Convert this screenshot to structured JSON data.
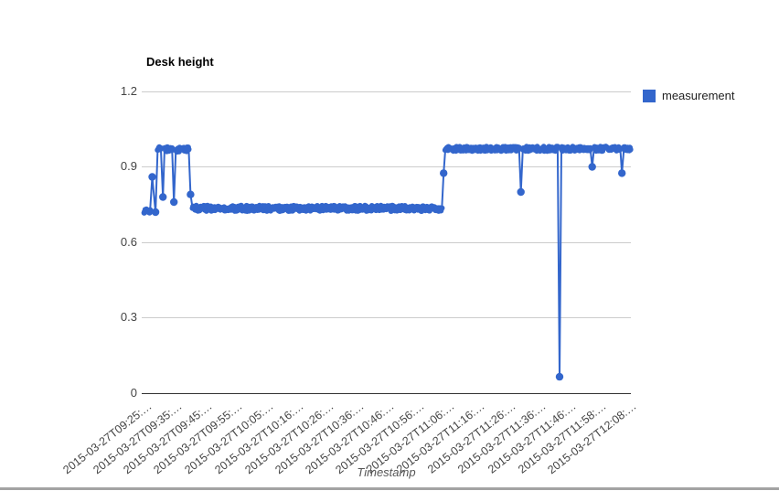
{
  "chart_data": {
    "type": "line",
    "title": "Desk height",
    "xlabel": "Timestamp",
    "legend": {
      "position": "right",
      "label": "measurement"
    },
    "series_color": "#3366cc",
    "grid_color": "#cccccc",
    "axis_line_color": "#333333",
    "ylim": [
      0,
      1.2
    ],
    "y_tick_labels": [
      "1.2",
      "0.9",
      "0.6",
      "0.3",
      "0"
    ],
    "x_tick_labels": [
      "2015-03-27T09:25:…",
      "2015-03-27T09:35:…",
      "2015-03-27T09:45:…",
      "2015-03-27T09:55:…",
      "2015-03-27T10:05:…",
      "2015-03-27T10:16:…",
      "2015-03-27T10:26:…",
      "2015-03-27T10:36:…",
      "2015-03-27T10:46:…",
      "2015-03-27T10:56:…",
      "2015-03-27T11:06:…",
      "2015-03-27T11:16:…",
      "2015-03-27T11:26:…",
      "2015-03-27T11:36:…",
      "2015-03-27T11:46:…",
      "2015-03-27T11:58:…",
      "2015-03-27T12:08:…"
    ],
    "x_start_time": "2015-03-27T09:25",
    "x_duration_minutes": 163,
    "sample_step_minutes": 0.18,
    "baseline_segments": [
      {
        "from_minute": -0.7,
        "to_minute": 2.0,
        "value": 0.725,
        "jitter": 0.008
      },
      {
        "from_minute": 2.2,
        "to_minute": 14.8,
        "value": 0.97,
        "jitter": 0.01
      },
      {
        "from_minute": 15.2,
        "to_minute": 99.6,
        "value": 0.735,
        "jitter": 0.011
      },
      {
        "from_minute": 100.2,
        "to_minute": 163.0,
        "value": 0.972,
        "jitter": 0.009
      }
    ],
    "dip_events": [
      {
        "minute": 2.0,
        "value": 0.86
      },
      {
        "minute": 3.1,
        "value": 0.72
      },
      {
        "minute": 5.6,
        "value": 0.78
      },
      {
        "minute": 9.3,
        "value": 0.76
      },
      {
        "minute": 14.9,
        "value": 0.79
      },
      {
        "minute": 100.0,
        "value": 0.875
      },
      {
        "minute": 126.0,
        "value": 0.8
      },
      {
        "minute": 139.0,
        "value": 0.065
      },
      {
        "minute": 150.0,
        "value": 0.9
      },
      {
        "minute": 160.0,
        "value": 0.875
      }
    ]
  }
}
